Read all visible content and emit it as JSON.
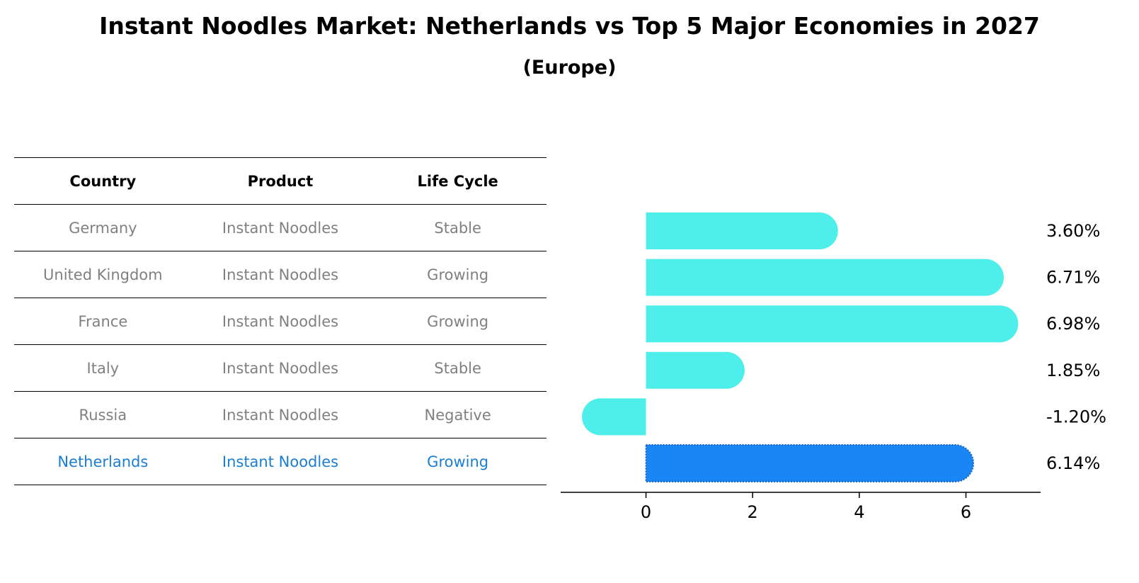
{
  "title": "Instant Noodles Market: Netherlands vs Top 5 Major Economies in 2027",
  "subtitle": "(Europe)",
  "table": {
    "headers": [
      "Country",
      "Product",
      "Life Cycle"
    ],
    "rows": [
      [
        "Germany",
        "Instant Noodles",
        "Stable"
      ],
      [
        "United Kingdom",
        "Instant Noodles",
        "Growing"
      ],
      [
        "France",
        "Instant Noodles",
        "Growing"
      ],
      [
        "Italy",
        "Instant Noodles",
        "Stable"
      ],
      [
        "Russia",
        "Instant Noodles",
        "Negative"
      ],
      [
        "Netherlands",
        "Instant Noodles",
        "Growing"
      ]
    ],
    "highlight_row": 5
  },
  "colors": {
    "bar": "#4eeeea",
    "highlight_bar": "#1a85f5",
    "highlight_text": "#1a7fd4",
    "row_text": "#808080"
  },
  "chart_data": {
    "type": "bar",
    "orientation": "horizontal",
    "categories": [
      "Germany",
      "United Kingdom",
      "France",
      "Italy",
      "Russia",
      "Netherlands"
    ],
    "values": [
      3.6,
      6.71,
      6.98,
      1.85,
      -1.2,
      6.14
    ],
    "value_labels": [
      "3.60%",
      "6.71%",
      "6.98%",
      "1.85%",
      "-1.20%",
      "6.14%"
    ],
    "highlight_index": 5,
    "xlim": [
      -1.6,
      7.4
    ],
    "xticks": [
      0,
      2,
      4,
      6
    ],
    "grid": false
  }
}
